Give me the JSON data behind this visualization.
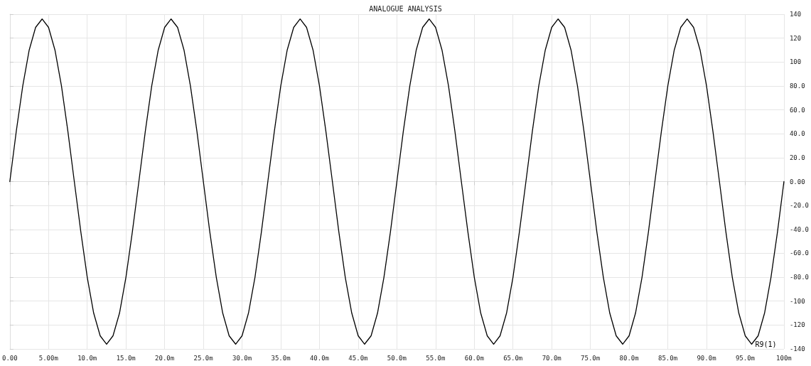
{
  "chart_data": {
    "type": "line",
    "title": "ANALOGUE ANALYSIS",
    "x": [
      0,
      0.83,
      1.67,
      2.5,
      3.33,
      4.17,
      5,
      5.83,
      6.67,
      7.5,
      8.33,
      9.17,
      10,
      10.83,
      11.67,
      12.5,
      13.33,
      14.17,
      15,
      15.83,
      16.67,
      17.5,
      18.33,
      19.17,
      20,
      20.83,
      21.67,
      22.5,
      23.33,
      24.17,
      25,
      25.83,
      26.67,
      27.5,
      28.33,
      29.17,
      30,
      30.83,
      31.67,
      32.5,
      33.33,
      34.17,
      35,
      35.83,
      36.67,
      37.5,
      38.33,
      39.17,
      40,
      40.83,
      41.67,
      42.5,
      43.33,
      44.17,
      45,
      45.83,
      46.67,
      47.5,
      48.33,
      49.17,
      50,
      50.83,
      51.67,
      52.5,
      53.33,
      54.17,
      55,
      55.83,
      56.67,
      57.5,
      58.33,
      59.17,
      60,
      60.83,
      61.67,
      62.5,
      63.33,
      64.17,
      65,
      65.83,
      66.67,
      67.5,
      68.33,
      69.17,
      70,
      70.83,
      71.67,
      72.5,
      73.33,
      74.17,
      75,
      75.83,
      76.67,
      77.5,
      78.33,
      79.17,
      80,
      80.83,
      81.67,
      82.5,
      83.33,
      84.17,
      85,
      85.83,
      86.67,
      87.5,
      88.33,
      89.17,
      90,
      90.83,
      91.67,
      92.5,
      93.33,
      94.17,
      95,
      95.83,
      96.67,
      97.5,
      98.33,
      99.17,
      100
    ],
    "series": [
      {
        "name": "R9(1)",
        "color": "#000000",
        "values": [
          0,
          42,
          80,
          110,
          129,
          136,
          129,
          110,
          80,
          42,
          0,
          -42,
          -80,
          -110,
          -129,
          -136,
          -129,
          -110,
          -80,
          -42,
          0,
          42,
          80,
          110,
          129,
          136,
          129,
          110,
          80,
          42,
          0,
          -42,
          -80,
          -110,
          -129,
          -136,
          -129,
          -110,
          -80,
          -42,
          0,
          42,
          80,
          110,
          129,
          136,
          129,
          110,
          80,
          42,
          0,
          -42,
          -80,
          -110,
          -129,
          -136,
          -129,
          -110,
          -80,
          -42,
          0,
          42,
          80,
          110,
          129,
          136,
          129,
          110,
          80,
          42,
          0,
          -42,
          -80,
          -110,
          -129,
          -136,
          -129,
          -110,
          -80,
          -42,
          0,
          42,
          80,
          110,
          129,
          136,
          129,
          110,
          80,
          42,
          0,
          -42,
          -80,
          -110,
          -129,
          -136,
          -129,
          -110,
          -80,
          -42,
          0,
          42,
          80,
          110,
          129,
          136,
          129,
          110,
          80,
          42,
          0,
          -42,
          -80,
          -110,
          -129,
          -136,
          -129,
          -110,
          -80,
          -42,
          0
        ]
      }
    ],
    "xlim": [
      0,
      100
    ],
    "xticks": [
      {
        "value": 0,
        "label": "0.00"
      },
      {
        "value": 5,
        "label": "5.00m"
      },
      {
        "value": 10,
        "label": "10.0m"
      },
      {
        "value": 15,
        "label": "15.0m"
      },
      {
        "value": 20,
        "label": "20.0m"
      },
      {
        "value": 25,
        "label": "25.0m"
      },
      {
        "value": 30,
        "label": "30.0m"
      },
      {
        "value": 35,
        "label": "35.0m"
      },
      {
        "value": 40,
        "label": "40.0m"
      },
      {
        "value": 45,
        "label": "45.0m"
      },
      {
        "value": 50,
        "label": "50.0m"
      },
      {
        "value": 55,
        "label": "55.0m"
      },
      {
        "value": 60,
        "label": "60.0m"
      },
      {
        "value": 65,
        "label": "65.0m"
      },
      {
        "value": 70,
        "label": "70.0m"
      },
      {
        "value": 75,
        "label": "75.0m"
      },
      {
        "value": 80,
        "label": "80.0m"
      },
      {
        "value": 85,
        "label": "85.0m"
      },
      {
        "value": 90,
        "label": "90.0m"
      },
      {
        "value": 95,
        "label": "95.0m"
      },
      {
        "value": 100,
        "label": "100m"
      }
    ],
    "ylim": [
      -140,
      140
    ],
    "yticks": [
      -140,
      -120,
      -100,
      {
        "value": -80,
        "label": "-80.0"
      },
      {
        "value": -60,
        "label": "-60.0"
      },
      {
        "value": -40,
        "label": "-40.0"
      },
      {
        "value": -20,
        "label": "-20.0"
      },
      {
        "value": 0,
        "label": "0.00"
      },
      {
        "value": 20,
        "label": "20.0"
      },
      {
        "value": 40,
        "label": "40.0"
      },
      {
        "value": 60,
        "label": "60.0"
      },
      {
        "value": 80,
        "label": "80.0"
      },
      100,
      120,
      140
    ],
    "grid": true,
    "legend": false,
    "marker": "none",
    "line_style": "solid"
  }
}
